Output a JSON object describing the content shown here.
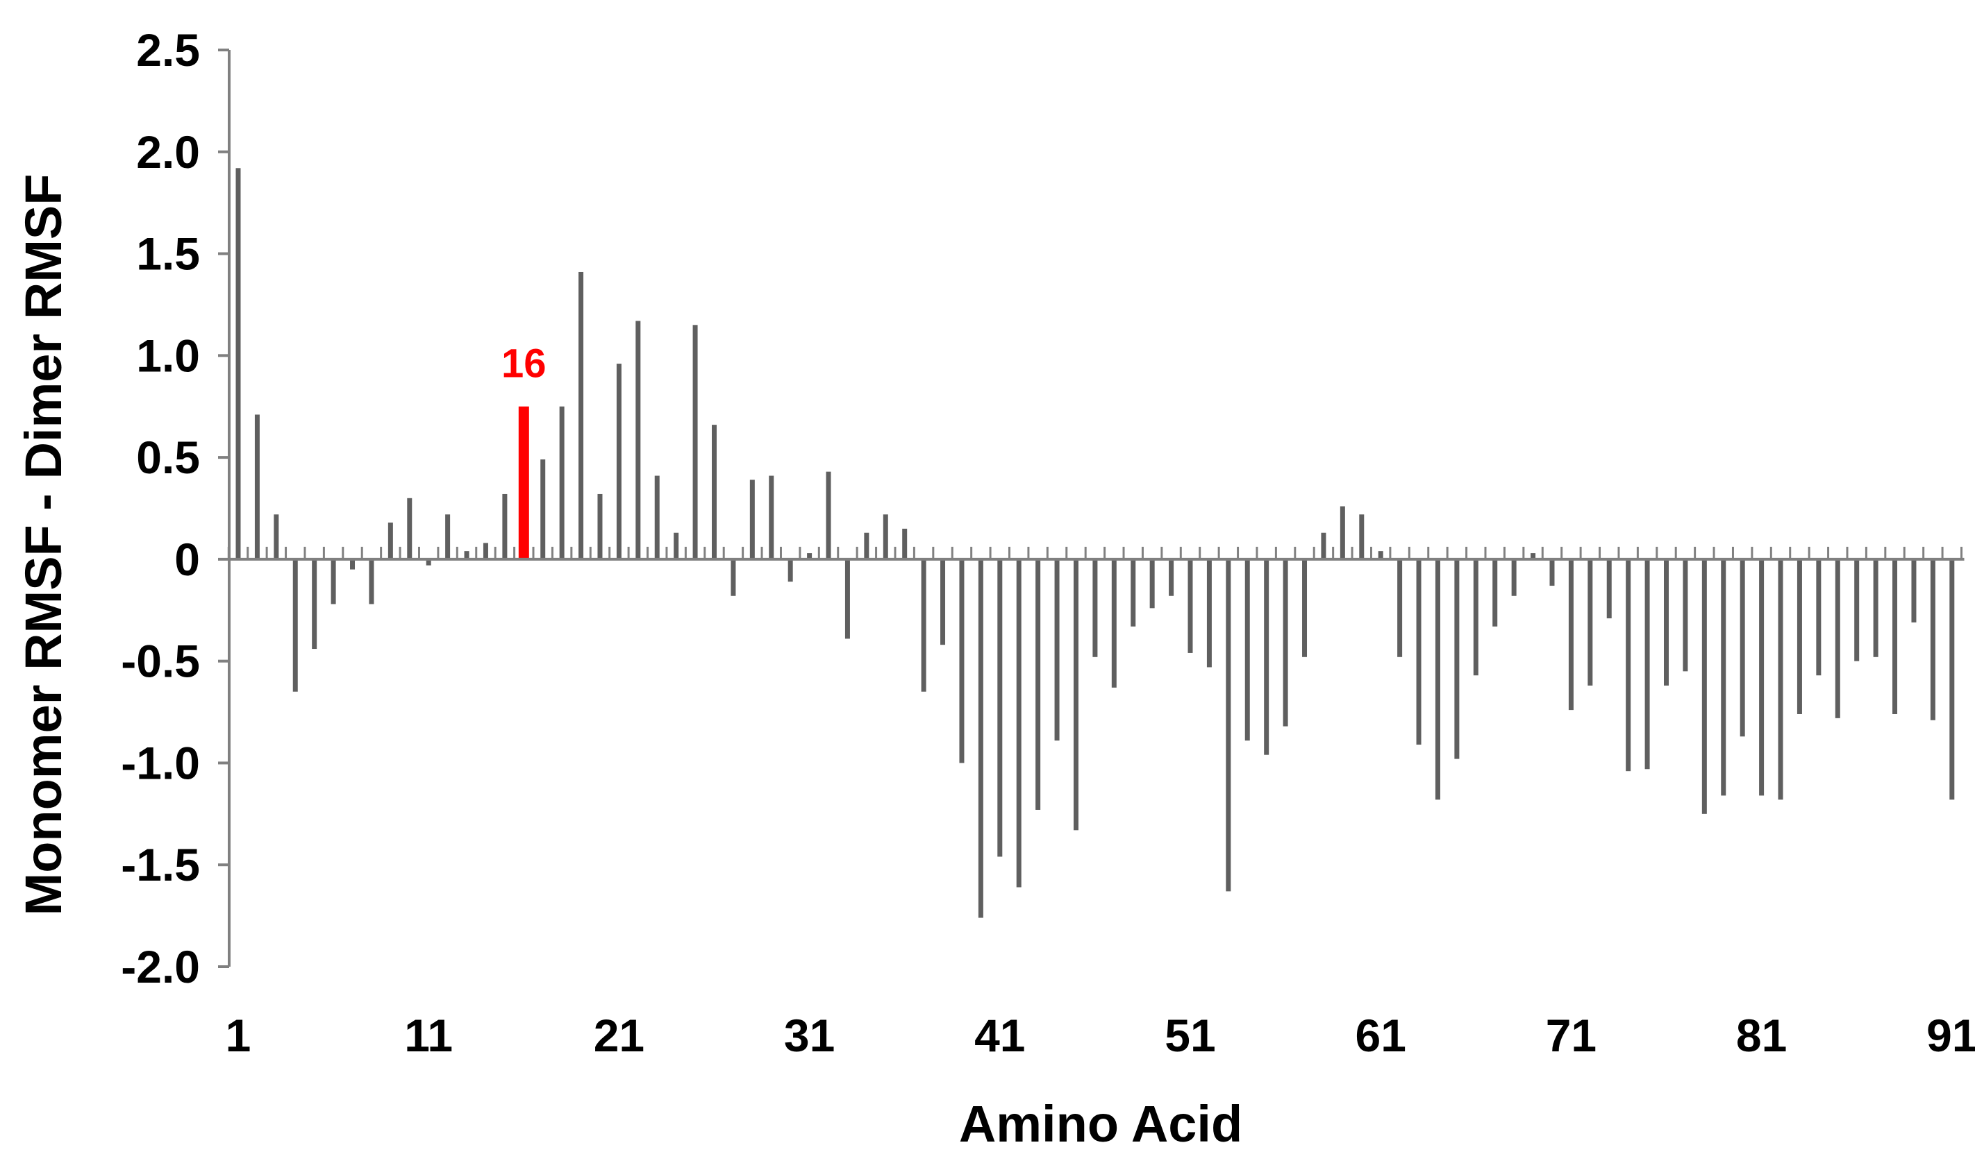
{
  "chart_data": {
    "type": "bar",
    "title": "",
    "xlabel": "Amino Acid",
    "ylabel": "Monomer RMSF - Dimer RMSF",
    "ylim": [
      -2.0,
      2.5
    ],
    "xlim": [
      0.5,
      91.5
    ],
    "yticks": [
      2.5,
      2.0,
      1.5,
      1.0,
      0.5,
      0,
      -0.5,
      -1.0,
      -1.5,
      -2.0
    ],
    "ytick_labels": [
      "2.5",
      "2.0",
      "1.5",
      "1.0",
      "0.5",
      "0",
      "-0.5",
      "-1.0",
      "-1.5",
      "-2.0"
    ],
    "xticks": [
      1,
      11,
      21,
      31,
      41,
      51,
      61,
      71,
      81,
      91
    ],
    "xtick_labels": [
      "1",
      "11",
      "21",
      "31",
      "41",
      "51",
      "61",
      "71",
      "81",
      "91"
    ],
    "grid": false,
    "legend": false,
    "series": [
      {
        "name": "Monomer RMSF - Dimer RMSF",
        "color": "#5f5f5f",
        "x": [
          1,
          2,
          3,
          4,
          5,
          6,
          7,
          8,
          9,
          10,
          11,
          12,
          13,
          14,
          15,
          16,
          17,
          18,
          19,
          20,
          21,
          22,
          23,
          24,
          25,
          26,
          27,
          28,
          29,
          30,
          31,
          32,
          33,
          34,
          35,
          36,
          37,
          38,
          39,
          40,
          41,
          42,
          43,
          44,
          45,
          46,
          47,
          48,
          49,
          50,
          51,
          52,
          53,
          54,
          55,
          56,
          57,
          58,
          59,
          60,
          61,
          62,
          63,
          64,
          65,
          66,
          67,
          68,
          69,
          70,
          71,
          72,
          73,
          74,
          75,
          76,
          77,
          78,
          79,
          80,
          81,
          82,
          83,
          84,
          85,
          86,
          87,
          88,
          89,
          90,
          91
        ],
        "values": [
          1.92,
          0.71,
          0.22,
          -0.65,
          -0.44,
          -0.22,
          -0.05,
          -0.22,
          0.18,
          0.3,
          -0.03,
          0.22,
          0.04,
          0.08,
          0.32,
          0.75,
          0.49,
          0.75,
          1.41,
          0.32,
          0.96,
          1.17,
          0.41,
          0.13,
          1.15,
          0.66,
          -0.18,
          0.39,
          0.41,
          -0.11,
          0.03,
          0.43,
          -0.39,
          0.13,
          0.22,
          0.15,
          -0.65,
          -0.42,
          -1.0,
          -1.76,
          -1.46,
          -1.61,
          -1.23,
          -0.89,
          -1.33,
          -0.48,
          -0.63,
          -0.33,
          -0.24,
          -0.18,
          -0.46,
          -0.53,
          -1.63,
          -0.89,
          -0.96,
          -0.82,
          -0.48,
          0.13,
          0.26,
          0.22,
          0.04,
          -0.48,
          -0.91,
          -1.18,
          -0.98,
          -0.57,
          -0.33,
          -0.18,
          0.03,
          -0.13,
          -0.74,
          -0.62,
          -0.29,
          -1.04,
          -1.03,
          -0.62,
          -0.55,
          -1.25,
          -1.16,
          -0.87,
          -1.16,
          -1.18,
          -0.76,
          -0.57,
          -0.78,
          -0.5,
          -0.48,
          -0.76,
          -0.31,
          -0.79,
          -1.18
        ]
      }
    ],
    "highlight": {
      "x": 16,
      "value": 0.75,
      "label": "16",
      "color": "#ff0000"
    }
  }
}
